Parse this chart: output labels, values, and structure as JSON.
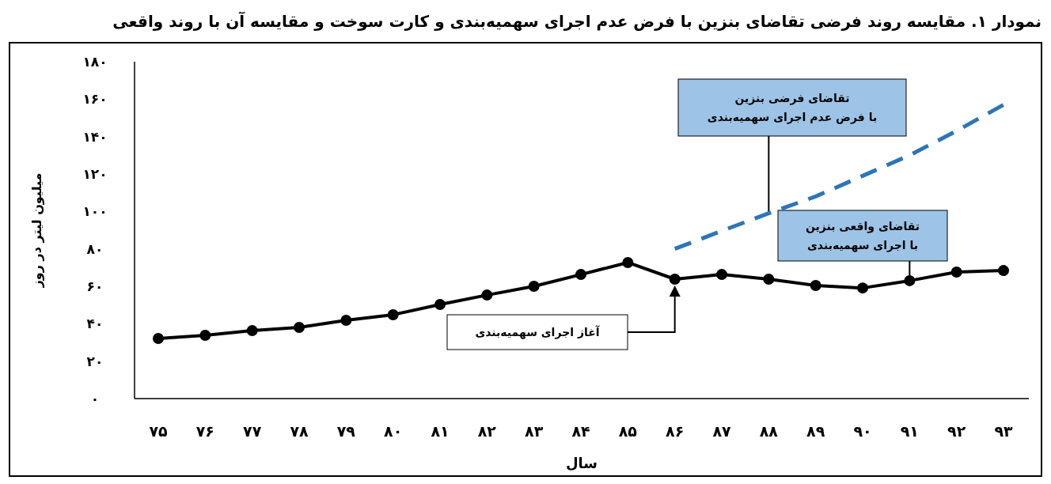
{
  "chart_data": {
    "type": "line",
    "title": "نمودار ۱. مقایسه روند فرضی تقاضای بنزین با فرض عدم اجرای سهمیه‌بندی و کارت سوخت و مقایسه آن با روند واقعی",
    "xlabel": "سال",
    "ylabel": "میلیون لیتر در روز",
    "categories": [
      "۷۵",
      "۷۶",
      "۷۷",
      "۷۸",
      "۷۹",
      "۸۰",
      "۸۱",
      "۸۲",
      "۸۳",
      "۸۴",
      "۸۵",
      "۸۶",
      "۸۷",
      "۸۸",
      "۸۹",
      "۹۰",
      "۹۱",
      "۹۲",
      "۹۳"
    ],
    "ylim": [
      0,
      180
    ],
    "yticks": [
      {
        "value": 0,
        "label": "۰"
      },
      {
        "value": 20,
        "label": "۲۰"
      },
      {
        "value": 40,
        "label": "۴۰"
      },
      {
        "value": 60,
        "label": "۶۰"
      },
      {
        "value": 80,
        "label": "۸۰"
      },
      {
        "value": 100,
        "label": "۱۰۰"
      },
      {
        "value": 120,
        "label": "۱۲۰"
      },
      {
        "value": 140,
        "label": "۱۴۰"
      },
      {
        "value": 160,
        "label": "۱۶۰"
      },
      {
        "value": 180,
        "label": "۱۸۰"
      }
    ],
    "series": [
      {
        "color": "#000000",
        "marker": "circle",
        "line_style": "solid",
        "values": [
          32.1,
          33.8,
          36.3,
          38,
          41.8,
          44.8,
          50.3,
          55.3,
          60,
          66.3,
          72.7,
          63.8,
          66.3,
          63.8,
          60.4,
          59.1,
          63,
          67.6,
          68.4
        ]
      },
      {
        "color": "#2e75b6",
        "marker": "none",
        "line_style": "dashed",
        "values": [
          null,
          null,
          null,
          null,
          null,
          null,
          null,
          null,
          null,
          null,
          null,
          80,
          89.6,
          99,
          108,
          119,
          130,
          143,
          157
        ]
      }
    ],
    "annotations": [
      {
        "text": "تقاضای فرضی بنزین\nبا فرض عدم اجرای سهمیه‌بندی",
        "x": "۸۸",
        "y": 99
      },
      {
        "text": "تقاضای واقعی بنزین\nبا اجرای سهمیه‌بندی",
        "x": "۹۱",
        "y": 63
      },
      "آغاز اجرای سهمیه‌بندی"
    ]
  }
}
